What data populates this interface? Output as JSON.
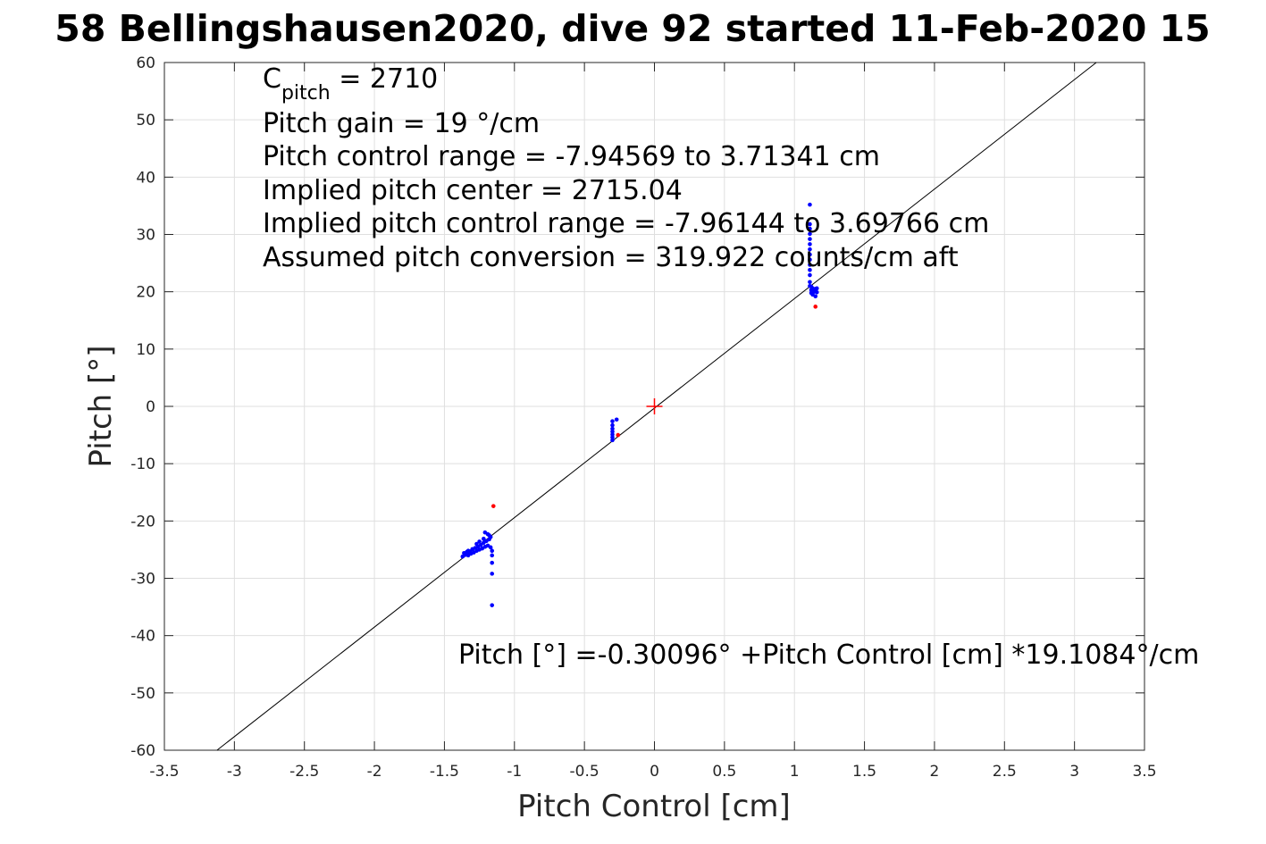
{
  "chart_data": {
    "type": "scatter",
    "title": "58 Bellingshausen2020, dive 92 started 11-Feb-2020 15",
    "xlabel": "Pitch Control [cm]",
    "ylabel": "Pitch [°]",
    "xlim": [
      -3.5,
      3.5
    ],
    "ylim": [
      -60,
      60
    ],
    "xticks": [
      -3.5,
      -3,
      -2.5,
      -2,
      -1.5,
      -1,
      -0.5,
      0,
      0.5,
      1,
      1.5,
      2,
      2.5,
      3,
      3.5
    ],
    "xtick_labels": [
      "-3.5",
      "-3",
      "-2.5",
      "-2",
      "-1.5",
      "-1",
      "-0.5",
      "0",
      "0.5",
      "1",
      "1.5",
      "2",
      "2.5",
      "3",
      "3.5"
    ],
    "yticks": [
      -60,
      -50,
      -40,
      -30,
      -20,
      -10,
      0,
      10,
      20,
      30,
      40,
      50,
      60
    ],
    "ytick_labels": [
      "-60",
      "-50",
      "-40",
      "-30",
      "-20",
      "-10",
      "0",
      "10",
      "20",
      "30",
      "40",
      "50",
      "60"
    ],
    "grid": true,
    "legend": "none",
    "annotations": {
      "cpitch_main": "C",
      "cpitch_sub": "pitch",
      "cpitch_rest": " = 2710",
      "line2": "Pitch gain = 19 °/cm",
      "line3": "Pitch control range = -7.94569 to 3.71341 cm",
      "line4": "Implied pitch center = 2715.04",
      "line5": "Implied pitch control range = -7.96144 to 3.69766 cm",
      "line6": "Assumed pitch conversion = 319.922 counts/cm aft",
      "fit": "Pitch [°] =-0.30096° +Pitch Control [cm] *19.1084°/cm"
    },
    "fit_line": {
      "intercept": -0.30096,
      "slope": 19.1084,
      "color": "#000000"
    },
    "center_marker": {
      "x": 0,
      "y": 0,
      "color": "#ff0000"
    },
    "series": [
      {
        "color": "#0000ff",
        "points": [
          [
            -1.37,
            -26.2
          ],
          [
            -1.36,
            -25.6
          ],
          [
            -1.35,
            -25.9
          ],
          [
            -1.34,
            -25.4
          ],
          [
            -1.33,
            -26.0
          ],
          [
            -1.32,
            -25.3
          ],
          [
            -1.31,
            -25.7
          ],
          [
            -1.3,
            -24.9
          ],
          [
            -1.29,
            -25.5
          ],
          [
            -1.28,
            -24.7
          ],
          [
            -1.27,
            -25.2
          ],
          [
            -1.26,
            -24.5
          ],
          [
            -1.25,
            -25.0
          ],
          [
            -1.24,
            -24.2
          ],
          [
            -1.23,
            -24.8
          ],
          [
            -1.22,
            -23.8
          ],
          [
            -1.21,
            -24.5
          ],
          [
            -1.2,
            -23.5
          ],
          [
            -1.19,
            -24.3
          ],
          [
            -1.18,
            -23.2
          ],
          [
            -1.17,
            -22.8
          ],
          [
            -1.17,
            -24.6
          ],
          [
            -1.16,
            -25.2
          ],
          [
            -1.16,
            -26.0
          ],
          [
            -1.16,
            -27.3
          ],
          [
            -1.16,
            -29.2
          ],
          [
            -1.16,
            -34.7
          ],
          [
            -1.19,
            -22.3
          ],
          [
            -1.21,
            -22.0
          ],
          [
            -1.18,
            -22.5
          ],
          [
            -1.25,
            -23.6
          ],
          [
            -1.3,
            -25.0
          ],
          [
            -1.33,
            -25.2
          ],
          [
            -1.27,
            -24.0
          ],
          [
            -1.22,
            -23.1
          ],
          [
            -0.3,
            -2.6
          ],
          [
            -0.3,
            -3.3
          ],
          [
            -0.3,
            -3.9
          ],
          [
            -0.3,
            -4.4
          ],
          [
            -0.3,
            -4.9
          ],
          [
            -0.3,
            -5.4
          ],
          [
            -0.3,
            -5.9
          ],
          [
            -0.27,
            -2.3
          ],
          [
            1.11,
            35.2
          ],
          [
            1.11,
            31.8
          ],
          [
            1.11,
            31.0
          ],
          [
            1.11,
            30.1
          ],
          [
            1.11,
            29.2
          ],
          [
            1.11,
            28.3
          ],
          [
            1.11,
            27.4
          ],
          [
            1.11,
            26.5
          ],
          [
            1.11,
            25.6
          ],
          [
            1.11,
            24.7
          ],
          [
            1.11,
            23.8
          ],
          [
            1.11,
            22.9
          ],
          [
            1.11,
            21.7
          ],
          [
            1.11,
            21.0
          ],
          [
            1.12,
            20.3
          ],
          [
            1.12,
            19.8
          ],
          [
            1.13,
            20.6
          ],
          [
            1.13,
            19.5
          ],
          [
            1.14,
            20.0
          ],
          [
            1.15,
            19.2
          ],
          [
            1.15,
            20.5
          ],
          [
            1.16,
            19.9
          ],
          [
            1.16,
            20.6
          ],
          [
            1.12,
            20.9
          ]
        ]
      },
      {
        "color": "#ff0000",
        "points": [
          [
            -1.15,
            -17.4
          ],
          [
            -0.26,
            -5.0
          ],
          [
            1.15,
            17.4
          ]
        ]
      }
    ]
  }
}
